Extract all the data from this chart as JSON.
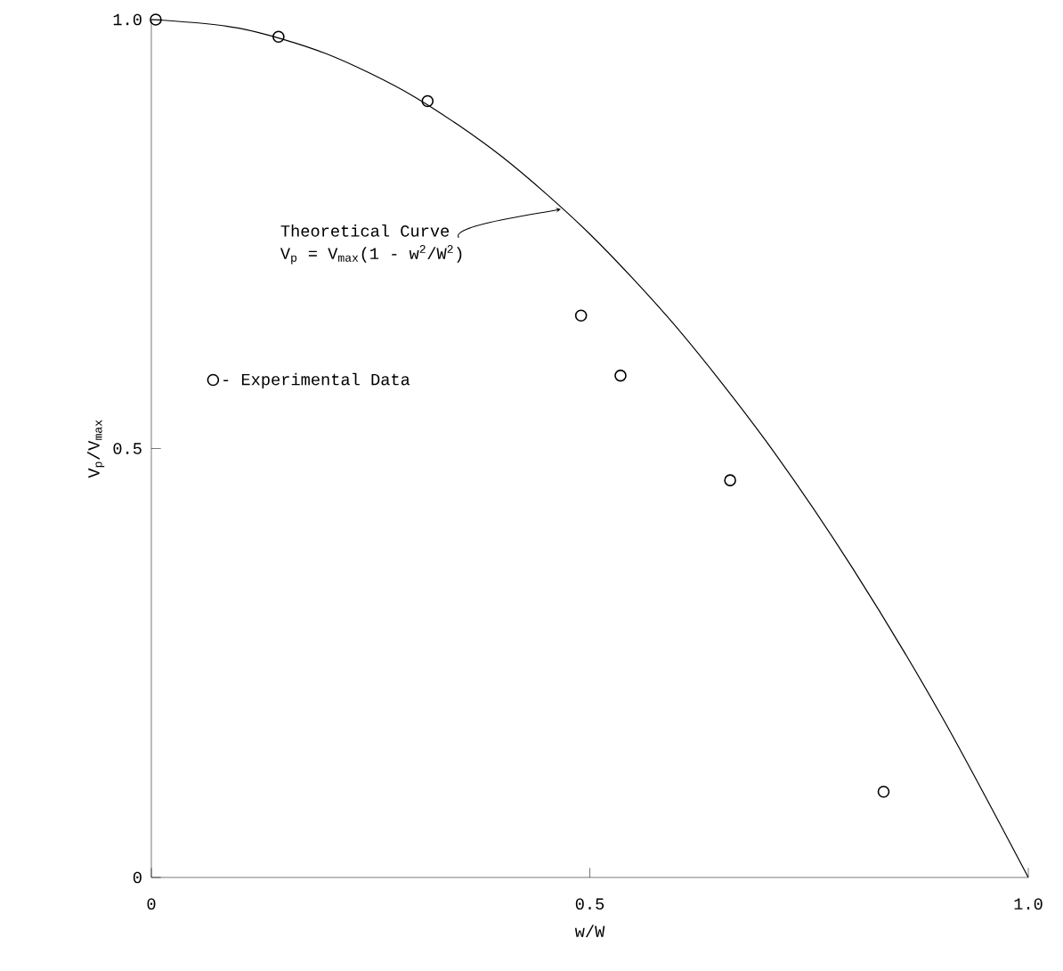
{
  "chart_data": {
    "type": "scatter",
    "xlabel": "w/W",
    "ylabel": "V$_{p}$/V$_{max}$",
    "xlim": [
      0,
      1
    ],
    "ylim": [
      0,
      1
    ],
    "xticks": [
      {
        "value": 0,
        "label": "0"
      },
      0.5,
      {
        "value": 1,
        "label": "1.0"
      }
    ],
    "yticks": [
      {
        "value": 0,
        "label": "0"
      },
      0.5,
      {
        "value": 1,
        "label": "1.0"
      }
    ],
    "series": [
      {
        "type": "line",
        "color": "#000000",
        "marker": "none",
        "x": [
          0,
          0.1,
          0.2,
          0.3,
          0.4,
          0.5,
          0.6,
          0.7,
          0.8,
          0.9,
          1.0
        ],
        "values": [
          1,
          0.99,
          0.96,
          0.91,
          0.84,
          0.75,
          0.64,
          0.51,
          0.36,
          0.19,
          0
        ]
      },
      {
        "name": "- Experimental Data",
        "color": "#000000",
        "marker": "circle",
        "x": [
          0.005,
          0.145,
          0.315,
          0.49,
          0.535,
          0.66,
          0.835
        ],
        "values": [
          1.0,
          0.98,
          0.905,
          0.655,
          0.585,
          0.463,
          0.1
        ]
      }
    ],
    "annotations": [
      {
        "text": "Theoretical Curve",
        "x": 0.467,
        "y": 0.779
      },
      "V$_{p}$ = V$_{max}$(1 - w$^{2}$/W$^{2}$)"
    ],
    "legend": "left",
    "grid": false
  }
}
